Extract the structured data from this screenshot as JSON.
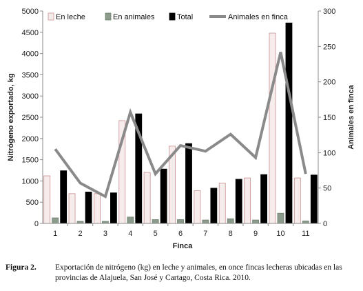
{
  "chart_data": {
    "type": "bar",
    "categories": [
      "1",
      "2",
      "3",
      "4",
      "5",
      "6",
      "7",
      "8",
      "9",
      "10",
      "11"
    ],
    "xlabel": "Finca",
    "ylabel": "Nitrógeno exportado, kg",
    "y2label": "Animales en finca",
    "ylim": [
      0,
      5000
    ],
    "y2lim": [
      0,
      300
    ],
    "yticks": [
      "0",
      "500",
      "1000",
      "1500",
      "2000",
      "2500",
      "3000",
      "3500",
      "4000",
      "4500",
      "5000"
    ],
    "y2ticks": [
      "0",
      "50",
      "100",
      "150",
      "200",
      "250",
      "300"
    ],
    "legend_position": "top",
    "series": [
      {
        "name": "En leche",
        "kind": "bar",
        "axis": "left",
        "color": "#f7ecec",
        "stroke": "#c98f8f",
        "values": [
          1120,
          700,
          700,
          2420,
          1200,
          1820,
          770,
          950,
          1070,
          4480,
          1070
        ]
      },
      {
        "name": "En animales",
        "kind": "bar",
        "axis": "left",
        "color": "#8c9c8c",
        "stroke": "#6f7f6f",
        "values": [
          130,
          50,
          50,
          150,
          90,
          90,
          80,
          110,
          80,
          240,
          60
        ]
      },
      {
        "name": "Total",
        "kind": "bar",
        "axis": "left",
        "color": "#000000",
        "stroke": "#000000",
        "values": [
          1240,
          740,
          720,
          2580,
          1280,
          1880,
          830,
          1040,
          1150,
          4720,
          1140
        ]
      },
      {
        "name": "Animales en finca",
        "kind": "line",
        "axis": "right",
        "color": "#8a8a8a",
        "values": [
          105,
          57,
          38,
          157,
          70,
          110,
          102,
          126,
          93,
          242,
          70
        ]
      }
    ]
  },
  "caption": {
    "label": "Figura 2.",
    "text": "Exportación de nitrógeno (kg) en leche y animales, en once fincas lecheras ubicadas en las provincias de Alajuela, San José y Cartago, Costa Rica. 2010."
  }
}
